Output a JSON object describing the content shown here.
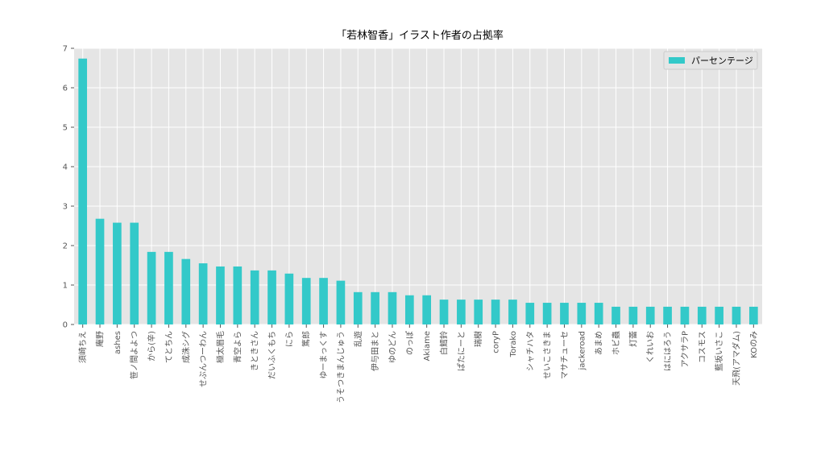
{
  "chart_data": {
    "type": "bar",
    "title": "「若林智香」イラスト作者の占拠率",
    "xlabel": "",
    "ylabel": "",
    "ylim": [
      0,
      7
    ],
    "yticks": [
      0,
      1,
      2,
      3,
      4,
      5,
      6,
      7
    ],
    "grid": true,
    "legend_position": "top-right",
    "colors": {
      "bar": "#33c9c9",
      "plot_bg": "#e5e5e5",
      "grid": "#ffffff"
    },
    "categories": [
      "須崎ちえ",
      "庵野",
      "ashes",
      "笹ノ間よよつ",
      "から(辛)",
      "てとちん",
      "成洙シグ",
      "せぶんつーわん",
      "極太眉毛",
      "青空よら",
      "きときさん",
      "だいふくもち",
      "にら",
      "篤郎",
      "ゆーまっくす",
      "うそつきまんじゅう",
      "乱遊",
      "伊与田まと",
      "ゆのどん",
      "のっぽ",
      "Akiame",
      "白鱈鈴",
      "ぱたにーと",
      "瑞樹",
      "coryP",
      "Torako",
      "シャチハタ",
      "せいこさきま",
      "マサチューセ",
      "jackeroad",
      "あまめ",
      "ホビ蟲",
      "灯蕾",
      "くれいお",
      "はにはろう",
      "アクサラP",
      "コスモス",
      "藍坂いさこ",
      "天飛(アマダム)",
      "KOのみ"
    ],
    "series": [
      {
        "name": "パーセンテージ",
        "values": [
          6.74,
          2.68,
          2.58,
          2.58,
          1.84,
          1.84,
          1.66,
          1.55,
          1.47,
          1.47,
          1.37,
          1.37,
          1.29,
          1.18,
          1.18,
          1.11,
          0.82,
          0.82,
          0.82,
          0.74,
          0.74,
          0.63,
          0.63,
          0.63,
          0.63,
          0.63,
          0.55,
          0.55,
          0.55,
          0.55,
          0.55,
          0.45,
          0.45,
          0.45,
          0.45,
          0.45,
          0.45,
          0.45,
          0.45,
          0.45
        ]
      }
    ]
  }
}
